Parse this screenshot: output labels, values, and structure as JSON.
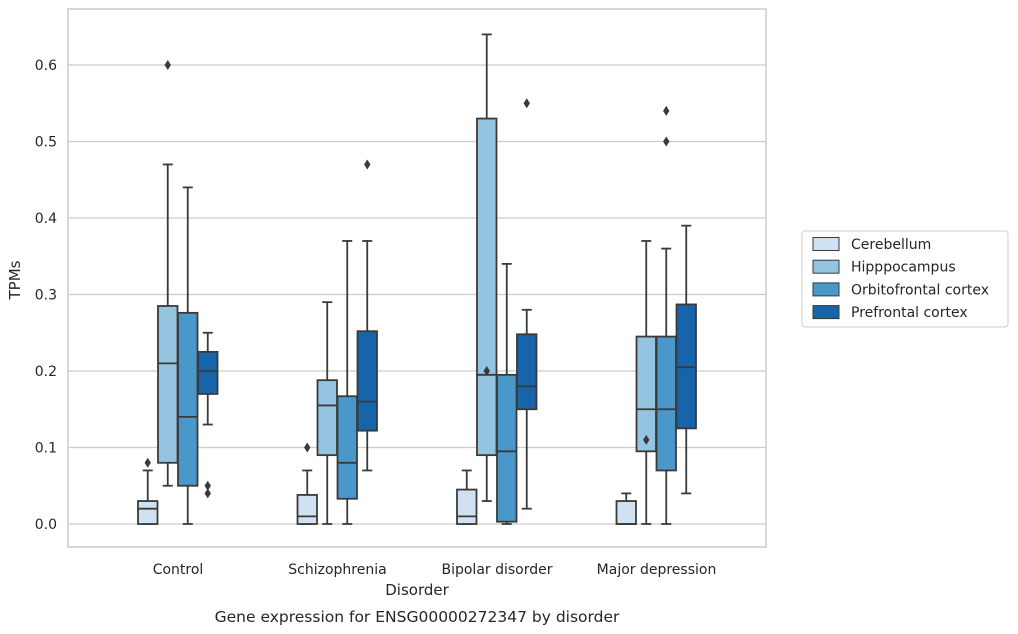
{
  "chart_data": {
    "type": "box",
    "caption": "Gene expression for ENSG00000272347 by disorder",
    "xlabel": "Disorder",
    "ylabel": "TPMs",
    "ylim": [
      -0.031,
      0.675
    ],
    "yticks": [
      0.0,
      0.1,
      0.2,
      0.3,
      0.4,
      0.5,
      0.6
    ],
    "ytick_labels": [
      "0.0",
      "0.1",
      "0.2",
      "0.3",
      "0.4",
      "0.5",
      "0.6"
    ],
    "grid": "horizontal",
    "legend_position": "right",
    "categories": [
      "Control",
      "Schizophrenia",
      "Bipolar disorder",
      "Major depression"
    ],
    "series": [
      {
        "name": "Cerebellum",
        "color": "#d0e1f2",
        "boxes": [
          {
            "whisker_low": 0.0,
            "q1": 0.0,
            "median": 0.02,
            "q3": 0.03,
            "whisker_high": 0.07,
            "outliers": [
              0.08
            ]
          },
          {
            "whisker_low": 0.0,
            "q1": 0.0,
            "median": 0.01,
            "q3": 0.038,
            "whisker_high": 0.07,
            "outliers": [
              0.1
            ]
          },
          {
            "whisker_low": 0.0,
            "q1": 0.0,
            "median": 0.01,
            "q3": 0.045,
            "whisker_high": 0.07,
            "outliers": []
          },
          {
            "whisker_low": 0.0,
            "q1": 0.0,
            "median": 0.0,
            "q3": 0.03,
            "whisker_high": 0.04,
            "outliers": []
          }
        ]
      },
      {
        "name": "Hipppocampus",
        "color": "#94c4df",
        "boxes": [
          {
            "whisker_low": 0.05,
            "q1": 0.08,
            "median": 0.21,
            "q3": 0.285,
            "whisker_high": 0.47,
            "outliers": [
              0.6
            ]
          },
          {
            "whisker_low": 0.0,
            "q1": 0.09,
            "median": 0.155,
            "q3": 0.188,
            "whisker_high": 0.29,
            "outliers": []
          },
          {
            "whisker_low": 0.03,
            "q1": 0.09,
            "median": 0.195,
            "q3": 0.53,
            "whisker_high": 0.64,
            "outliers": [
              0.2
            ]
          },
          {
            "whisker_low": 0.0,
            "q1": 0.095,
            "median": 0.15,
            "q3": 0.245,
            "whisker_high": 0.37,
            "outliers": [
              0.11
            ]
          }
        ]
      },
      {
        "name": "Orbitofrontal cortex",
        "color": "#4a98c9",
        "boxes": [
          {
            "whisker_low": 0.0,
            "q1": 0.05,
            "median": 0.14,
            "q3": 0.276,
            "whisker_high": 0.44,
            "outliers": []
          },
          {
            "whisker_low": 0.0,
            "q1": 0.033,
            "median": 0.08,
            "q3": 0.167,
            "whisker_high": 0.37,
            "outliers": []
          },
          {
            "whisker_low": 0.0,
            "q1": 0.003,
            "median": 0.095,
            "q3": 0.195,
            "whisker_high": 0.34,
            "outliers": []
          },
          {
            "whisker_low": 0.0,
            "q1": 0.07,
            "median": 0.15,
            "q3": 0.245,
            "whisker_high": 0.36,
            "outliers": [
              0.5,
              0.54
            ]
          }
        ]
      },
      {
        "name": "Prefrontal cortex",
        "color": "#1764ab",
        "boxes": [
          {
            "whisker_low": 0.13,
            "q1": 0.17,
            "median": 0.2,
            "q3": 0.225,
            "whisker_high": 0.25,
            "outliers": [
              0.05,
              0.04
            ]
          },
          {
            "whisker_low": 0.07,
            "q1": 0.122,
            "median": 0.16,
            "q3": 0.252,
            "whisker_high": 0.37,
            "outliers": [
              0.47
            ]
          },
          {
            "whisker_low": 0.02,
            "q1": 0.15,
            "median": 0.18,
            "q3": 0.248,
            "whisker_high": 0.28,
            "outliers": [
              0.55
            ]
          },
          {
            "whisker_low": 0.04,
            "q1": 0.125,
            "median": 0.205,
            "q3": 0.287,
            "whisker_high": 0.39,
            "outliers": []
          }
        ]
      }
    ]
  }
}
